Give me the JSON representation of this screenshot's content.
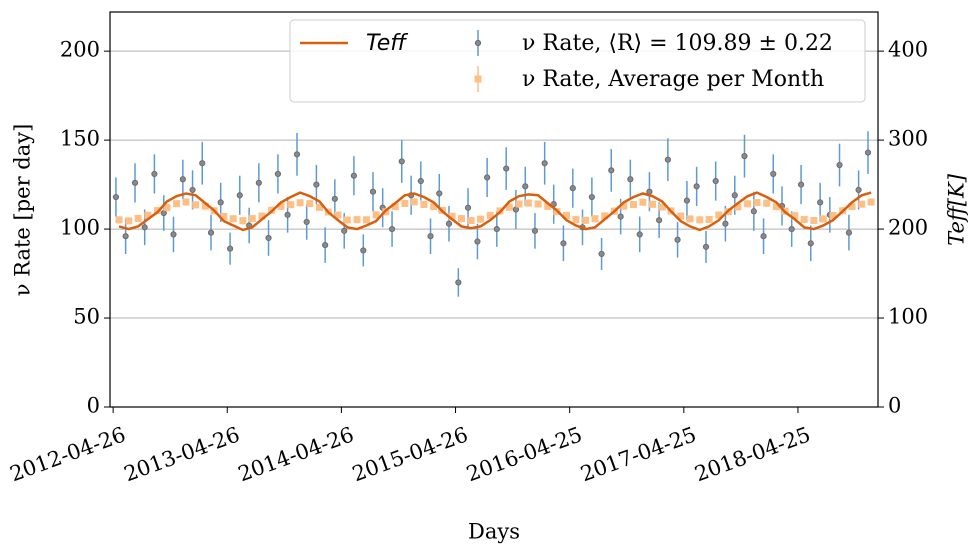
{
  "chart_data": {
    "type": "errorbar",
    "x_label": "Days",
    "y_label": "ν Rate [per day]",
    "y2_label": "Teff[K]",
    "xlim": [
      "2012-04-16",
      "2019-01-06"
    ],
    "xticks": [
      "2012-04-26",
      "2013-04-26",
      "2014-04-26",
      "2015-04-26",
      "2016-04-25",
      "2017-04-25",
      "2018-04-25"
    ],
    "ylim": [
      0,
      222
    ],
    "yticks": [
      0,
      50,
      100,
      150,
      200
    ],
    "y2lim": [
      0,
      444
    ],
    "y2ticks": [
      0,
      100,
      200,
      300,
      400
    ],
    "grid": true,
    "legend": "upper right",
    "series": [
      {
        "name": "Teff",
        "color": "#d95f0e",
        "axis": "y2",
        "kind": "line",
        "x": [
          "2012-05-15",
          "2012-06-15",
          "2012-07-15",
          "2012-08-15",
          "2012-09-15",
          "2012-10-15",
          "2012-11-15",
          "2012-12-15",
          "2013-01-15",
          "2013-02-15",
          "2013-03-15",
          "2013-04-15",
          "2013-05-15",
          "2013-06-15",
          "2013-07-15",
          "2013-08-15",
          "2013-09-15",
          "2013-10-15",
          "2013-11-15",
          "2013-12-15",
          "2014-01-15",
          "2014-02-15",
          "2014-03-15",
          "2014-04-15",
          "2014-05-15",
          "2014-06-15",
          "2014-07-15",
          "2014-08-15",
          "2014-09-15",
          "2014-10-15",
          "2014-11-15",
          "2014-12-15",
          "2015-01-15",
          "2015-02-15",
          "2015-03-15",
          "2015-04-15",
          "2015-05-15",
          "2015-06-15",
          "2015-07-15",
          "2015-08-15",
          "2015-09-15",
          "2015-10-15",
          "2015-11-15",
          "2015-12-15",
          "2016-01-15",
          "2016-02-15",
          "2016-03-15",
          "2016-04-15",
          "2016-05-15",
          "2016-06-15",
          "2016-07-15",
          "2016-08-15",
          "2016-09-15",
          "2016-10-15",
          "2016-11-15",
          "2016-12-15",
          "2017-01-15",
          "2017-02-15",
          "2017-03-15",
          "2017-04-15",
          "2017-05-15",
          "2017-06-15",
          "2017-07-15",
          "2017-08-15",
          "2017-09-15",
          "2017-10-15",
          "2017-11-15",
          "2017-12-15",
          "2018-01-15",
          "2018-02-15",
          "2018-03-15",
          "2018-04-15",
          "2018-05-15",
          "2018-06-15",
          "2018-07-15",
          "2018-08-15",
          "2018-09-15",
          "2018-10-15",
          "2018-11-15",
          "2018-12-15"
        ],
        "values": [
          203,
          200,
          203,
          211,
          219,
          231,
          237,
          240,
          238,
          229,
          221,
          209,
          204,
          199,
          202,
          211,
          220,
          230,
          236,
          241,
          237,
          231,
          219,
          210,
          202,
          200,
          204,
          209,
          221,
          229,
          238,
          240,
          236,
          230,
          220,
          211,
          203,
          201,
          203,
          210,
          219,
          231,
          237,
          239,
          238,
          229,
          221,
          210,
          204,
          200,
          202,
          211,
          220,
          230,
          236,
          240,
          237,
          231,
          220,
          209,
          203,
          199,
          203,
          210,
          221,
          229,
          237,
          241,
          236,
          230,
          219,
          211,
          202,
          200,
          204,
          210,
          220,
          230,
          238,
          241
        ]
      },
      {
        "name": "ν Rate, ⟨R⟩ = 109.89 ± 0.22",
        "color": "#5b9bd5",
        "marker_color": "#6b6b6b",
        "kind": "points",
        "x": [
          "2012-05-05",
          "2012-06-05",
          "2012-07-05",
          "2012-08-05",
          "2012-09-05",
          "2012-10-05",
          "2012-11-05",
          "2012-12-05",
          "2013-01-05",
          "2013-02-05",
          "2013-03-05",
          "2013-04-05",
          "2013-05-05",
          "2013-06-05",
          "2013-07-05",
          "2013-08-05",
          "2013-09-05",
          "2013-10-05",
          "2013-11-05",
          "2013-12-05",
          "2014-01-05",
          "2014-02-05",
          "2014-03-05",
          "2014-04-05",
          "2014-05-05",
          "2014-06-05",
          "2014-07-05",
          "2014-08-05",
          "2014-09-05",
          "2014-10-05",
          "2014-11-05",
          "2014-12-05",
          "2015-01-05",
          "2015-02-05",
          "2015-03-05",
          "2015-04-05",
          "2015-05-05",
          "2015-06-05",
          "2015-07-05",
          "2015-08-05",
          "2015-09-05",
          "2015-10-05",
          "2015-11-05",
          "2015-12-05",
          "2016-01-05",
          "2016-02-05",
          "2016-03-05",
          "2016-04-05",
          "2016-05-05",
          "2016-06-05",
          "2016-07-05",
          "2016-08-05",
          "2016-09-05",
          "2016-10-05",
          "2016-11-05",
          "2016-12-05",
          "2017-01-05",
          "2017-02-05",
          "2017-03-05",
          "2017-04-05",
          "2017-05-05",
          "2017-06-05",
          "2017-07-05",
          "2017-08-05",
          "2017-09-05",
          "2017-10-05",
          "2017-11-05",
          "2017-12-05",
          "2018-01-05",
          "2018-02-05",
          "2018-03-05",
          "2018-04-05",
          "2018-05-05",
          "2018-06-05",
          "2018-07-05",
          "2018-08-05",
          "2018-09-05",
          "2018-10-05",
          "2018-11-05",
          "2018-12-05"
        ],
        "values": [
          118,
          96,
          126,
          101,
          131,
          109,
          97,
          128,
          122,
          137,
          98,
          115,
          89,
          119,
          102,
          126,
          95,
          131,
          108,
          142,
          104,
          125,
          91,
          117,
          99,
          130,
          88,
          121,
          112,
          100,
          138,
          119,
          127,
          96,
          120,
          103,
          70,
          112,
          93,
          129,
          100,
          134,
          111,
          124,
          99,
          137,
          114,
          92,
          123,
          101,
          118,
          86,
          133,
          107,
          128,
          97,
          121,
          105,
          139,
          94,
          116,
          124,
          90,
          127,
          103,
          119,
          141,
          110,
          96,
          131,
          113,
          100,
          125,
          92,
          115,
          108,
          136,
          98,
          122,
          143
        ],
        "errors": [
          11,
          10,
          11,
          10,
          11,
          10,
          10,
          11,
          11,
          12,
          10,
          11,
          9,
          11,
          10,
          11,
          10,
          11,
          10,
          12,
          10,
          11,
          10,
          11,
          10,
          11,
          9,
          11,
          11,
          10,
          12,
          11,
          11,
          10,
          11,
          10,
          8,
          11,
          10,
          11,
          10,
          12,
          11,
          11,
          10,
          12,
          11,
          10,
          11,
          10,
          11,
          9,
          12,
          10,
          11,
          10,
          11,
          10,
          12,
          10,
          11,
          11,
          9,
          11,
          10,
          11,
          12,
          11,
          10,
          11,
          11,
          10,
          11,
          10,
          11,
          10,
          12,
          10,
          11,
          12
        ]
      },
      {
        "name": "ν Rate, Average per Month",
        "color": "#fdbf86",
        "kind": "squares",
        "x": [
          "2012-05-15",
          "2012-06-15",
          "2012-07-15",
          "2012-08-15",
          "2012-09-15",
          "2012-10-15",
          "2012-11-15",
          "2012-12-15",
          "2013-01-15",
          "2013-02-15",
          "2013-03-15",
          "2013-04-15",
          "2013-05-15",
          "2013-06-15",
          "2013-07-15",
          "2013-08-15",
          "2013-09-15",
          "2013-10-15",
          "2013-11-15",
          "2013-12-15",
          "2014-01-15",
          "2014-02-15",
          "2014-03-15",
          "2014-04-15",
          "2014-05-15",
          "2014-06-15",
          "2014-07-15",
          "2014-08-15",
          "2014-09-15",
          "2014-10-15",
          "2014-11-15",
          "2014-12-15",
          "2015-01-15",
          "2015-02-15",
          "2015-03-15",
          "2015-04-15",
          "2015-05-15",
          "2015-06-15",
          "2015-07-15",
          "2015-08-15",
          "2015-09-15",
          "2015-10-15",
          "2015-11-15",
          "2015-12-15",
          "2016-01-15",
          "2016-02-15",
          "2016-03-15",
          "2016-04-15",
          "2016-05-15",
          "2016-06-15",
          "2016-07-15",
          "2016-08-15",
          "2016-09-15",
          "2016-10-15",
          "2016-11-15",
          "2016-12-15",
          "2017-01-15",
          "2017-02-15",
          "2017-03-15",
          "2017-04-15",
          "2017-05-15",
          "2017-06-15",
          "2017-07-15",
          "2017-08-15",
          "2017-09-15",
          "2017-10-15",
          "2017-11-15",
          "2017-12-15",
          "2018-01-15",
          "2018-02-15",
          "2018-03-15",
          "2018-04-15",
          "2018-05-15",
          "2018-06-15",
          "2018-07-15",
          "2018-08-15",
          "2018-09-15",
          "2018-10-15",
          "2018-11-15",
          "2018-12-15"
        ],
        "values": [
          105.2,
          104.6,
          106.0,
          107.8,
          110.4,
          112.1,
          114.3,
          115.2,
          113.6,
          112.9,
          110.3,
          107.1,
          105.8,
          104.7,
          105.9,
          107.3,
          110.6,
          112.8,
          113.7,
          114.8,
          114.3,
          112.2,
          109.6,
          107.9,
          105.1,
          105.3,
          105.2,
          108.0,
          109.7,
          112.6,
          114.4,
          115.3,
          113.8,
          112.7,
          110.5,
          107.2,
          105.9,
          104.8,
          105.6,
          107.7,
          110.2,
          112.3,
          114.1,
          114.6,
          114.1,
          112.8,
          109.8,
          107.6,
          105.3,
          104.9,
          105.8,
          107.4,
          110.1,
          112.9,
          113.8,
          115.1,
          113.9,
          112.4,
          110.2,
          107.3,
          105.7,
          105.2,
          105.4,
          107.9,
          109.8,
          112.5,
          114.2,
          114.9,
          114.5,
          112.6,
          110.1,
          107.5,
          105.4,
          104.8,
          105.7,
          107.6,
          110.3,
          112.7,
          114.0,
          115.2
        ],
        "errors": [
          2,
          2,
          2,
          2,
          2,
          2,
          2,
          2,
          2,
          2,
          2,
          2,
          2,
          2,
          2,
          2,
          2,
          2,
          2,
          2,
          2,
          2,
          2,
          2,
          2,
          2,
          2,
          2,
          2,
          2,
          2,
          2,
          2,
          2,
          2,
          2,
          2,
          2,
          2,
          2,
          2,
          2,
          2,
          2,
          2,
          2,
          2,
          2,
          2,
          2,
          2,
          2,
          2,
          2,
          2,
          2,
          2,
          2,
          2,
          2,
          2,
          2,
          2,
          2,
          2,
          2,
          2,
          2,
          2,
          2,
          2,
          2,
          2,
          2,
          2,
          2,
          2,
          2,
          2,
          2
        ]
      }
    ]
  }
}
